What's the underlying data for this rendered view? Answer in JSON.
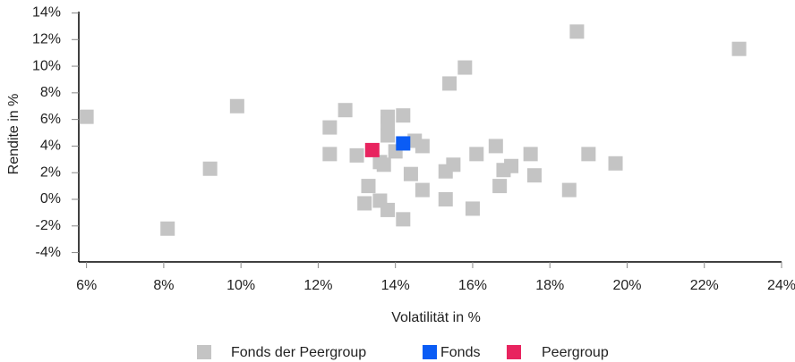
{
  "chart_data": {
    "type": "scatter",
    "x_label": "Volatilität in %",
    "y_label": "Rendite in %",
    "xlim": [
      5.8,
      24
    ],
    "ylim": [
      -4.7,
      14.1
    ],
    "xticks": [
      {
        "value": 6,
        "label": "6%"
      },
      {
        "value": 8,
        "label": "8%"
      },
      {
        "value": 10,
        "label": "10%"
      },
      {
        "value": 12,
        "label": "12%"
      },
      {
        "value": 14,
        "label": "14%"
      },
      {
        "value": 16,
        "label": "16%"
      },
      {
        "value": 18,
        "label": "18%"
      },
      {
        "value": 20,
        "label": "20%"
      },
      {
        "value": 22,
        "label": "22%"
      },
      {
        "value": 24,
        "label": "24%"
      }
    ],
    "yticks": [
      {
        "value": -4,
        "label": "-4%"
      },
      {
        "value": -2,
        "label": "-2%"
      },
      {
        "value": 0,
        "label": "0%"
      },
      {
        "value": 2,
        "label": "2%"
      },
      {
        "value": 4,
        "label": "4%"
      },
      {
        "value": 6,
        "label": "6%"
      },
      {
        "value": 8,
        "label": "8%"
      },
      {
        "value": 10,
        "label": "10%"
      },
      {
        "value": 12,
        "label": "12%"
      },
      {
        "value": 14,
        "label": "14%"
      }
    ],
    "series": [
      {
        "name": "Fonds der Peergroup",
        "color": "#c4c4c4",
        "x": [
          6.0,
          8.1,
          9.2,
          9.9,
          12.3,
          12.3,
          12.7,
          13.0,
          13.2,
          13.3,
          13.6,
          13.6,
          13.7,
          13.8,
          13.8,
          13.8,
          13.8,
          14.0,
          14.2,
          14.2,
          14.4,
          14.5,
          14.7,
          14.7,
          15.3,
          15.3,
          15.5,
          15.4,
          15.8,
          16.0,
          16.1,
          16.6,
          16.7,
          16.8,
          17.0,
          17.5,
          17.6,
          18.5,
          18.7,
          19.0,
          19.7,
          22.9
        ],
        "values": [
          6.2,
          -2.2,
          2.3,
          7.0,
          5.4,
          3.4,
          6.7,
          3.3,
          -0.3,
          1.0,
          -0.1,
          2.8,
          2.6,
          6.2,
          5.7,
          4.8,
          -0.8,
          3.6,
          6.3,
          -1.5,
          1.9,
          4.4,
          4.0,
          0.7,
          0.0,
          2.1,
          2.6,
          8.7,
          9.9,
          -0.7,
          3.4,
          4.0,
          1.0,
          2.2,
          2.5,
          3.4,
          1.8,
          0.7,
          12.6,
          3.4,
          2.7,
          11.3
        ]
      },
      {
        "name": "Fonds",
        "color": "#0a5cf5",
        "x": [
          14.2
        ],
        "values": [
          4.2
        ]
      },
      {
        "name": "Peergroup",
        "color": "#e8245f",
        "x": [
          13.4
        ],
        "values": [
          3.7
        ]
      }
    ]
  }
}
